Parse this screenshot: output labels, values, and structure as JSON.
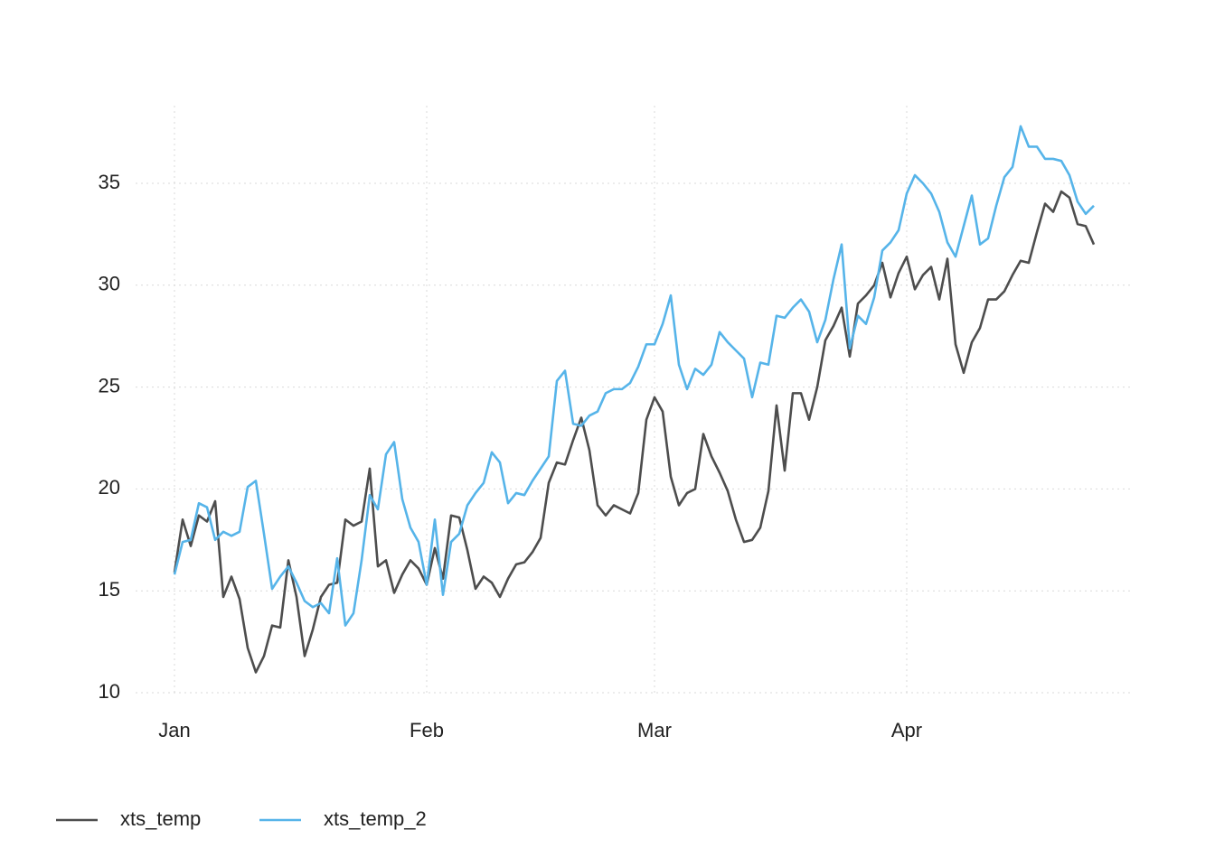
{
  "chart_data": {
    "type": "line",
    "x": [
      0,
      1,
      2,
      3,
      4,
      5,
      6,
      7,
      8,
      9,
      10,
      11,
      12,
      13,
      14,
      15,
      16,
      17,
      18,
      19,
      20,
      21,
      22,
      23,
      24,
      25,
      26,
      27,
      28,
      29,
      30,
      31,
      32,
      33,
      34,
      35,
      36,
      37,
      38,
      39,
      40,
      41,
      42,
      43,
      44,
      45,
      46,
      47,
      48,
      49,
      50,
      51,
      52,
      53,
      54,
      55,
      56,
      57,
      58,
      59,
      60,
      61,
      62,
      63,
      64,
      65,
      66,
      67,
      68,
      69,
      70,
      71,
      72,
      73,
      74,
      75,
      76,
      77,
      78,
      79,
      80,
      81,
      82,
      83,
      84,
      85,
      86,
      87,
      88,
      89,
      90,
      91,
      92,
      93,
      94,
      95,
      96,
      97,
      98,
      99,
      100,
      101,
      102,
      103,
      104,
      105,
      106,
      107,
      108,
      109,
      110,
      111,
      112,
      113
    ],
    "series": [
      {
        "name": "xts_temp",
        "color": "#4d4d4d",
        "values": [
          15.9,
          18.5,
          17.2,
          18.7,
          18.4,
          19.4,
          14.7,
          15.7,
          14.6,
          12.2,
          11.0,
          11.8,
          13.3,
          13.2,
          16.5,
          14.7,
          11.8,
          13.1,
          14.7,
          15.3,
          15.4,
          18.5,
          18.2,
          18.4,
          21.0,
          16.2,
          16.5,
          14.9,
          15.8,
          16.5,
          16.1,
          15.3,
          17.1,
          15.6,
          18.7,
          18.6,
          17.0,
          15.1,
          15.7,
          15.4,
          14.7,
          15.6,
          16.3,
          16.4,
          16.9,
          17.6,
          20.3,
          21.3,
          21.2,
          22.4,
          23.5,
          21.9,
          19.2,
          18.7,
          19.2,
          19.0,
          18.8,
          19.8,
          23.4,
          24.5,
          23.8,
          20.6,
          19.2,
          19.8,
          20.0,
          22.7,
          21.6,
          20.8,
          19.9,
          18.5,
          17.4,
          17.5,
          18.1,
          19.9,
          24.1,
          20.9,
          24.7,
          24.7,
          23.4,
          25.0,
          27.3,
          28.0,
          28.9,
          26.5,
          29.1,
          29.5,
          30.0,
          31.1,
          29.4,
          30.6,
          31.4,
          29.8,
          30.5,
          30.9,
          29.3,
          31.3,
          27.1,
          25.7,
          27.2,
          27.9,
          29.3,
          29.3,
          29.7,
          30.5,
          31.2,
          31.1,
          32.6,
          34.0,
          33.6,
          34.6,
          34.3,
          33.0,
          32.9,
          32.0
        ]
      },
      {
        "name": "xts_temp_2",
        "color": "#56b4e9",
        "values": [
          15.8,
          17.4,
          17.5,
          19.3,
          19.1,
          17.5,
          17.9,
          17.7,
          17.9,
          20.1,
          20.4,
          17.8,
          15.1,
          15.7,
          16.2,
          15.4,
          14.5,
          14.2,
          14.4,
          13.9,
          16.6,
          13.3,
          13.9,
          16.5,
          19.7,
          19.0,
          21.7,
          22.3,
          19.5,
          18.1,
          17.4,
          15.3,
          18.5,
          14.8,
          17.4,
          17.8,
          19.2,
          19.8,
          20.3,
          21.8,
          21.3,
          19.3,
          19.8,
          19.7,
          20.4,
          21.0,
          21.6,
          25.3,
          25.8,
          23.2,
          23.1,
          23.6,
          23.8,
          24.7,
          24.9,
          24.9,
          25.2,
          26.0,
          27.1,
          27.1,
          28.1,
          29.5,
          26.1,
          24.9,
          25.9,
          25.6,
          26.1,
          27.7,
          27.2,
          26.8,
          26.4,
          24.5,
          26.2,
          26.1,
          28.5,
          28.4,
          28.9,
          29.3,
          28.7,
          27.2,
          28.3,
          30.3,
          32.0,
          26.9,
          28.5,
          28.1,
          29.4,
          31.7,
          32.1,
          32.7,
          34.5,
          35.4,
          35.0,
          34.5,
          33.6,
          32.1,
          31.4,
          32.9,
          34.4,
          32.0,
          32.3,
          33.9,
          35.3,
          35.8,
          37.8,
          36.8,
          36.8,
          36.2,
          36.2,
          36.1,
          35.4,
          34.1,
          33.5,
          33.9
        ]
      }
    ],
    "xlim": [
      -5.65,
      118.65
    ],
    "xticks": [
      {
        "value": 0,
        "label": "Jan"
      },
      {
        "value": 31,
        "label": "Feb"
      },
      {
        "value": 59,
        "label": "Mar"
      },
      {
        "value": 90,
        "label": "Apr"
      }
    ],
    "ylim": [
      9.66,
      39.14
    ],
    "yticks": [
      10,
      15,
      20,
      25,
      30,
      35
    ],
    "grid": true,
    "legend": "bottom-left"
  }
}
